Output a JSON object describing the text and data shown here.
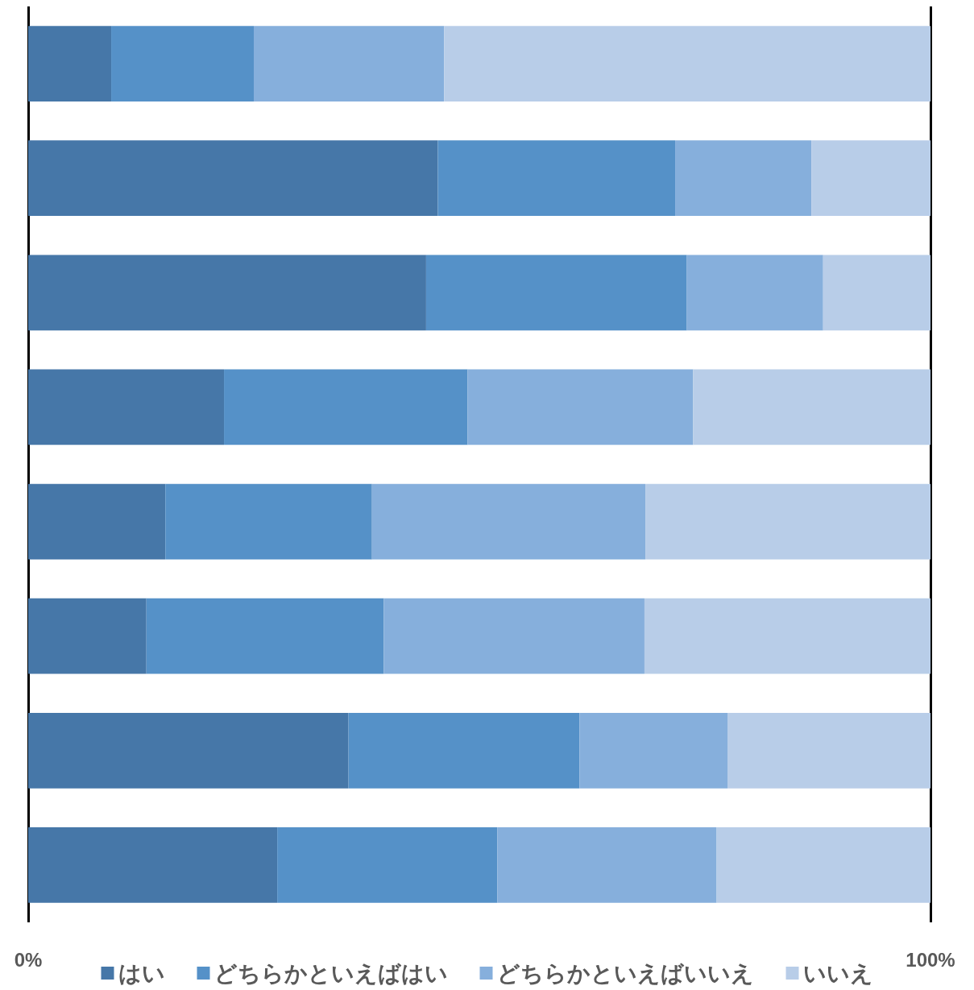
{
  "chart_data": {
    "type": "bar",
    "orientation": "horizontal",
    "stacked": true,
    "categories": [
      null,
      null,
      null,
      null,
      null,
      null,
      null,
      null
    ],
    "series": [
      {
        "name": "はい",
        "color": "#4677a8",
        "values": [
          9.2,
          45.4,
          44.1,
          21.7,
          15.2,
          13.1,
          35.5,
          27.6
        ]
      },
      {
        "name": "どちらかといえばはい",
        "color": "#5591c8",
        "values": [
          15.8,
          26.3,
          28.9,
          27.0,
          22.9,
          26.3,
          25.6,
          24.4
        ]
      },
      {
        "name": "どちらかといえばいいえ",
        "color": "#86afdc",
        "values": [
          21.1,
          15.1,
          15.1,
          25.0,
          30.3,
          28.9,
          16.4,
          24.3
        ]
      },
      {
        "name": "いいえ",
        "color": "#b8cde8",
        "values": [
          53.9,
          13.2,
          11.9,
          26.3,
          31.6,
          31.7,
          22.5,
          23.7
        ]
      }
    ],
    "xlim": [
      0,
      100
    ],
    "xticks": [
      {
        "value": 0,
        "label": "0%"
      },
      {
        "value": 100,
        "label": "100%"
      }
    ],
    "grid": "x",
    "legend": "bottom",
    "tick_labels": "x"
  }
}
